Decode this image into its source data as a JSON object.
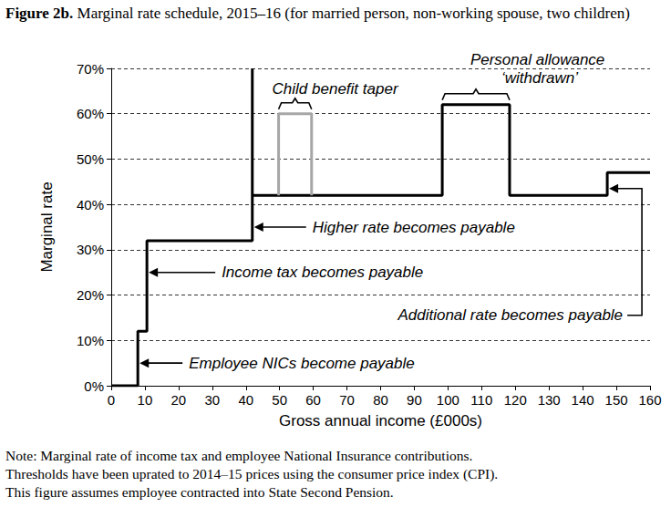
{
  "chart_data": {
    "type": "line",
    "title": "Figure 2b.  Marginal rate schedule, 2015–16 (for married person, non-working spouse, two children)",
    "x_label": "Gross annual income (£000s)",
    "y_label": "Marginal rate",
    "notes": [
      "Note: Marginal rate of income tax and employee National Insurance contributions.",
      "Thresholds have been uprated to 2014–15 prices using the consumer price index (CPI).",
      "This figure assumes employee contracted into State Second Pension."
    ],
    "line_style": "step",
    "grid": true,
    "xlim": [
      0,
      160
    ],
    "xticks": [
      0,
      10,
      20,
      30,
      40,
      50,
      60,
      70,
      80,
      90,
      100,
      110,
      120,
      130,
      140,
      150,
      160
    ],
    "ylim": [
      0,
      70
    ],
    "yticks": [
      {
        "value": 0,
        "label": "0%"
      },
      {
        "value": 10,
        "label": "10%"
      },
      {
        "value": 20,
        "label": "20%"
      },
      {
        "value": 30,
        "label": "30%"
      },
      {
        "value": 40,
        "label": "40%"
      },
      {
        "value": 50,
        "label": "50%"
      },
      {
        "value": 60,
        "label": "60%"
      },
      {
        "value": 70,
        "label": "70%"
      }
    ],
    "series": [
      {
        "color": "#000000",
        "x": [
          0,
          7.9,
          10.6,
          41.9,
          41.9,
          98.3,
          118.3,
          147.3,
          160
        ],
        "values": [
          0,
          12,
          32,
          70,
          42,
          62,
          42,
          47,
          47
        ]
      },
      {
        "color": "#a6a6a6",
        "x": [
          49.7,
          49.7,
          59.5
        ],
        "values": [
          42,
          60,
          42
        ]
      }
    ],
    "annotations": [
      {
        "text": "Employee NICs become payable",
        "x": 7.9,
        "y": 5
      },
      {
        "text": "Income tax becomes payable",
        "x": 10.6,
        "y": 25
      },
      {
        "text": "Higher rate becomes payable",
        "x": 41.9,
        "y": 35
      },
      {
        "text": "Additional rate becomes payable",
        "x": 147.3,
        "y": 43.5
      },
      {
        "text": "Child benefit taper",
        "x": [
          49.7,
          59.5
        ],
        "y": 60
      },
      {
        "text": "Personal allowance ‘withdrawn’",
        "x": [
          98.3,
          118.3
        ],
        "y": 62
      }
    ]
  }
}
